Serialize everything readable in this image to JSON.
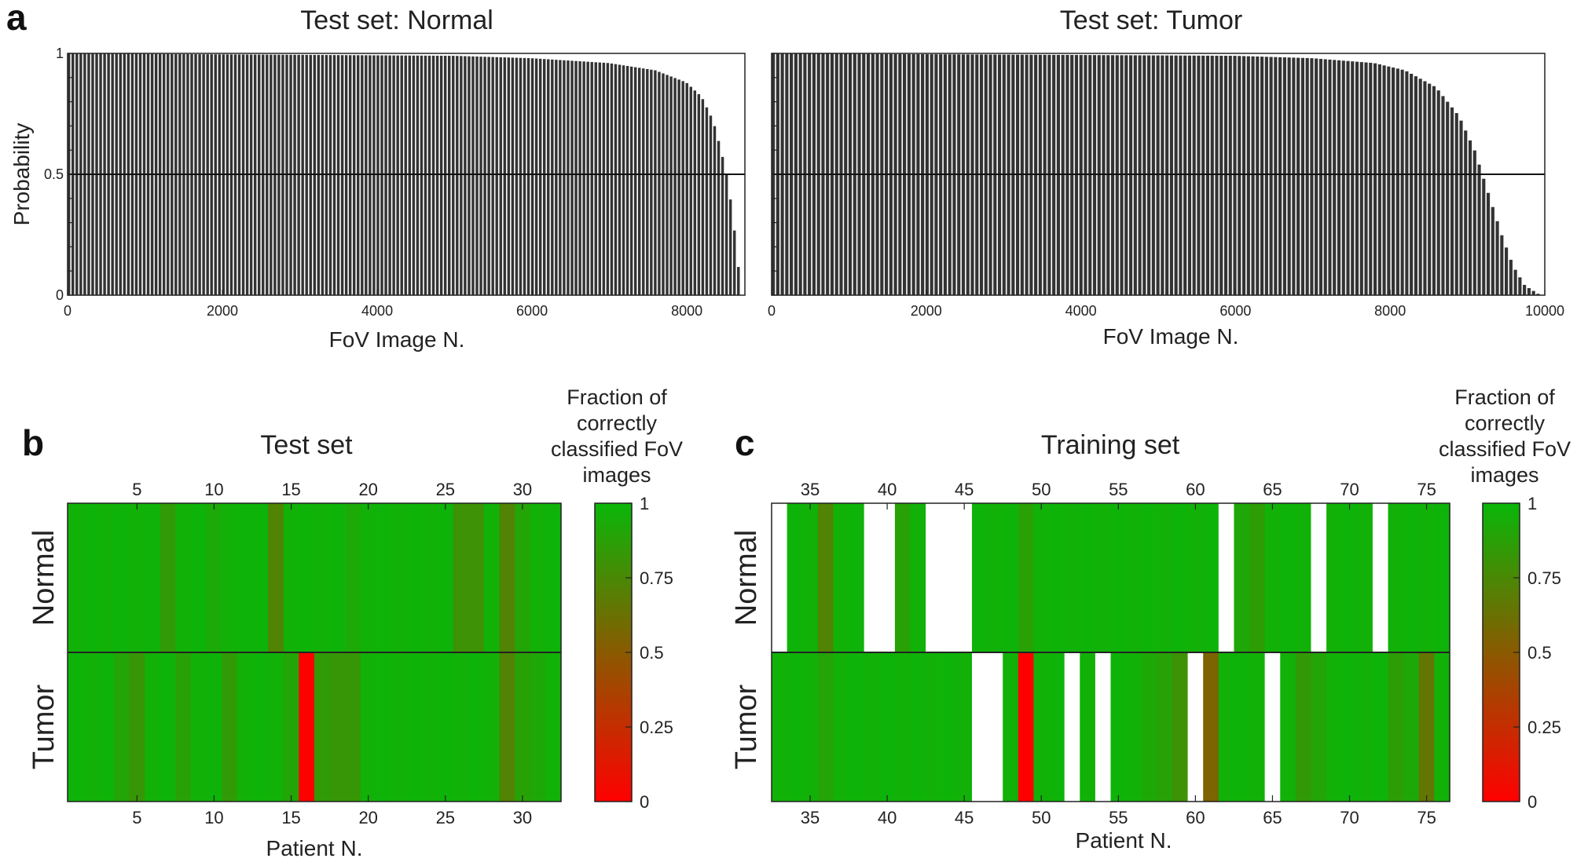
{
  "panel_labels": {
    "a": "a",
    "b": "b",
    "c": "c"
  },
  "colors": {
    "green": "#09b709",
    "red": "#ff0000",
    "bar": "#333333",
    "background": "#ffffff"
  },
  "chart_data": [
    {
      "id": "a-normal",
      "type": "bar",
      "title": "Test set: Normal",
      "xlabel": "FoV Image N.",
      "ylabel": "Probability",
      "xlim": [
        0,
        8750
      ],
      "ylim": [
        0,
        1
      ],
      "xticks": [
        0,
        2000,
        4000,
        6000,
        8000
      ],
      "yticks": [
        0,
        0.5,
        1
      ],
      "ytick_labels": [
        "0",
        "0.5",
        "1"
      ],
      "threshold": 0.5,
      "n_images": 8700,
      "sorted_probability_curve": [
        [
          0,
          1.0
        ],
        [
          5000,
          0.99
        ],
        [
          6000,
          0.98
        ],
        [
          7000,
          0.96
        ],
        [
          7600,
          0.93
        ],
        [
          8000,
          0.88
        ],
        [
          8200,
          0.82
        ],
        [
          8350,
          0.72
        ],
        [
          8450,
          0.6
        ],
        [
          8520,
          0.5
        ],
        [
          8580,
          0.38
        ],
        [
          8630,
          0.25
        ],
        [
          8680,
          0.1
        ],
        [
          8700,
          0.0
        ]
      ]
    },
    {
      "id": "a-tumor",
      "type": "bar",
      "title": "Test set: Tumor",
      "xlabel": "FoV Image N.",
      "xlim": [
        0,
        10000
      ],
      "ylim": [
        0,
        1
      ],
      "xticks": [
        0,
        2000,
        4000,
        6000,
        8000,
        10000
      ],
      "threshold": 0.5,
      "n_images": 9950,
      "sorted_probability_curve": [
        [
          0,
          1.0
        ],
        [
          6000,
          0.99
        ],
        [
          7000,
          0.98
        ],
        [
          7800,
          0.96
        ],
        [
          8200,
          0.93
        ],
        [
          8600,
          0.86
        ],
        [
          8900,
          0.74
        ],
        [
          9100,
          0.6
        ],
        [
          9200,
          0.5
        ],
        [
          9300,
          0.4
        ],
        [
          9450,
          0.25
        ],
        [
          9600,
          0.12
        ],
        [
          9750,
          0.04
        ],
        [
          9950,
          0.0
        ]
      ]
    },
    {
      "id": "b",
      "type": "heatmap",
      "title": "Test set",
      "xlabel": "Patient N.",
      "rows": [
        "Normal",
        "Tumor"
      ],
      "x_range": [
        1,
        32
      ],
      "xticks": [
        5,
        10,
        15,
        20,
        25,
        30
      ],
      "values": {
        "Normal": [
          0.97,
          0.98,
          0.97,
          0.98,
          0.97,
          0.98,
          0.85,
          0.97,
          0.98,
          0.93,
          0.97,
          0.98,
          0.98,
          0.72,
          0.97,
          0.98,
          0.97,
          0.98,
          0.93,
          0.97,
          0.98,
          0.97,
          0.98,
          0.97,
          0.98,
          0.8,
          0.8,
          0.97,
          0.72,
          0.9,
          0.97,
          0.98
        ],
        "Tumor": [
          0.98,
          0.97,
          0.98,
          0.9,
          0.82,
          0.97,
          0.98,
          0.88,
          0.97,
          0.98,
          0.85,
          0.97,
          0.98,
          0.97,
          0.9,
          0.0,
          0.85,
          0.82,
          0.82,
          0.97,
          0.98,
          0.97,
          0.98,
          0.97,
          0.98,
          0.97,
          0.98,
          0.97,
          0.72,
          0.88,
          0.92,
          0.97
        ]
      },
      "colorbar": {
        "title_lines": [
          "Fraction of",
          "correctly",
          "classified FoV",
          "images"
        ],
        "ticks": [
          1,
          0.75,
          0.5,
          0.25,
          0
        ],
        "tick_labels": [
          "1",
          "0.75",
          "0.5",
          "0.25",
          "0"
        ],
        "range": [
          0,
          1
        ]
      }
    },
    {
      "id": "c",
      "type": "heatmap",
      "title": "Training set",
      "xlabel": "Patient N.",
      "rows": [
        "Normal",
        "Tumor"
      ],
      "x_range": [
        33,
        76
      ],
      "xticks": [
        35,
        40,
        45,
        50,
        55,
        60,
        65,
        70,
        75
      ],
      "values": {
        "Normal": [
          null,
          0.98,
          0.97,
          0.72,
          0.97,
          0.98,
          null,
          null,
          0.88,
          0.97,
          null,
          null,
          null,
          0.98,
          0.97,
          0.98,
          0.88,
          0.97,
          0.98,
          0.97,
          0.98,
          0.97,
          0.98,
          0.97,
          0.98,
          0.97,
          0.98,
          0.97,
          0.98,
          null,
          0.92,
          0.86,
          0.97,
          0.98,
          0.97,
          null,
          0.97,
          0.98,
          0.97,
          null,
          0.97,
          0.98,
          0.97,
          0.98
        ],
        "Tumor": [
          0.97,
          0.98,
          0.97,
          0.9,
          0.97,
          0.98,
          0.97,
          0.98,
          0.97,
          0.98,
          0.97,
          0.98,
          0.97,
          null,
          null,
          0.97,
          0.0,
          0.97,
          0.98,
          null,
          0.97,
          null,
          0.98,
          0.97,
          0.92,
          0.88,
          0.8,
          null,
          0.55,
          0.97,
          0.98,
          0.97,
          null,
          0.97,
          0.84,
          0.9,
          0.97,
          0.98,
          0.97,
          0.98,
          0.86,
          0.92,
          0.65,
          0.97
        ]
      },
      "colorbar": {
        "title_lines": [
          "Fraction of",
          "correctly",
          "classified FoV",
          "images"
        ],
        "ticks": [
          1,
          0.75,
          0.5,
          0.25,
          0
        ],
        "tick_labels": [
          "1",
          "0.75",
          "0.5",
          "0.25",
          "0"
        ],
        "range": [
          0,
          1
        ]
      }
    }
  ]
}
